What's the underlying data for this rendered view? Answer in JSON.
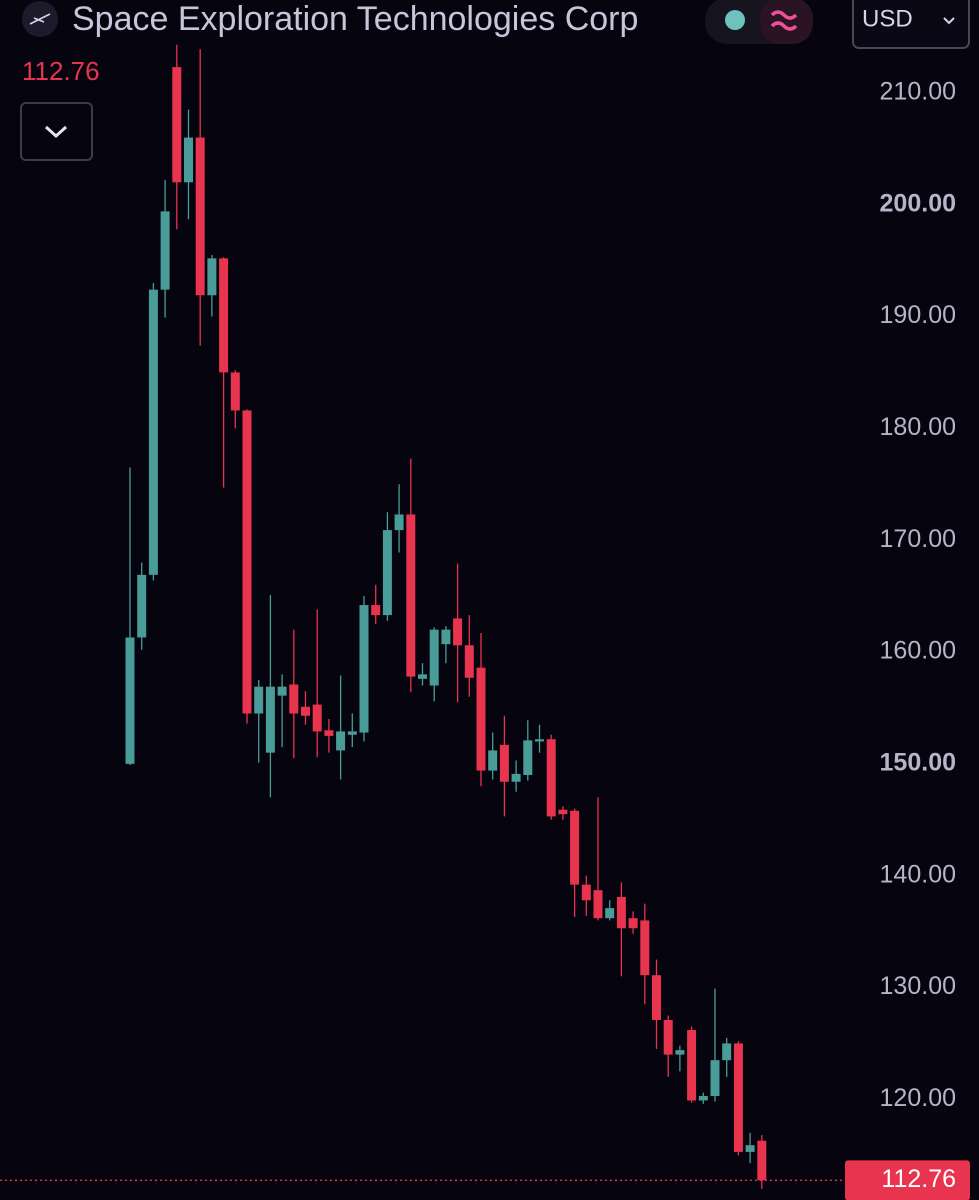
{
  "chart_data": {
    "type": "candlestick",
    "title": "Space Exploration Technologies Corp",
    "currency": "USD",
    "last_price": 112.76,
    "up_color": "#4a9c98",
    "down_color": "#e8344e",
    "ylim": [
      111.0,
      218.3
    ],
    "yticks": [
      {
        "value": 120,
        "label": "120.00"
      },
      {
        "value": 130,
        "label": "130.00"
      },
      {
        "value": 140,
        "label": "140.00"
      },
      {
        "value": 150,
        "label": "150.00",
        "bold": true
      },
      {
        "value": 160,
        "label": "160.00"
      },
      {
        "value": 170,
        "label": "170.00"
      },
      {
        "value": 180,
        "label": "180.00"
      },
      {
        "value": 190,
        "label": "190.00"
      },
      {
        "value": 200,
        "label": "200.00",
        "bold": true
      },
      {
        "value": 210,
        "label": "210.00"
      }
    ],
    "open": [
      150.0,
      161.3,
      166.9,
      192.4,
      212.3,
      202.0,
      206.0,
      191.9,
      195.2,
      185.0,
      181.6,
      154.5,
      151.0,
      156.1,
      157.1,
      155.1,
      155.3,
      153.0,
      151.2,
      152.6,
      152.8,
      164.2,
      163.3,
      170.9,
      172.3,
      157.6,
      157.0,
      160.7,
      163.0,
      160.6,
      158.6,
      149.4,
      151.7,
      148.4,
      149.0,
      152.0,
      152.2,
      145.9,
      145.8,
      139.2,
      138.7,
      136.2,
      138.1,
      136.2,
      136.0,
      131.1,
      127.1,
      124.0,
      126.2,
      119.9,
      120.3,
      123.5,
      125.0,
      115.3,
      116.3
    ],
    "high": [
      176.5,
      168.0,
      193.0,
      202.2,
      214.3,
      208.5,
      213.9,
      195.5,
      195.3,
      185.2,
      181.7,
      157.5,
      165.1,
      158.0,
      162.0,
      156.5,
      163.8,
      154.0,
      157.9,
      154.5,
      165.0,
      166.0,
      172.5,
      175.0,
      177.3,
      159.0,
      162.2,
      162.3,
      167.9,
      163.3,
      161.7,
      152.8,
      154.3,
      150.3,
      153.9,
      153.5,
      152.6,
      146.2,
      146.0,
      140.0,
      147.0,
      137.8,
      139.4,
      136.8,
      137.5,
      132.5,
      127.5,
      124.8,
      126.5,
      120.6,
      129.9,
      125.5,
      125.2,
      117.0,
      116.8
    ],
    "low": [
      149.9,
      160.2,
      166.4,
      189.9,
      197.8,
      198.7,
      187.4,
      190.0,
      174.7,
      180.0,
      153.6,
      150.1,
      147.0,
      151.5,
      150.5,
      153.5,
      150.6,
      151.0,
      148.6,
      151.5,
      152.0,
      162.5,
      162.8,
      168.9,
      156.4,
      157.0,
      155.6,
      159.0,
      155.5,
      156.0,
      148.0,
      148.6,
      145.3,
      147.5,
      148.5,
      151.0,
      145.0,
      145.0,
      136.3,
      136.4,
      136.0,
      136.0,
      131.0,
      134.8,
      128.5,
      124.5,
      122.0,
      122.5,
      119.7,
      119.6,
      119.8,
      122.0,
      115.0,
      114.3,
      112.0
    ],
    "close": [
      161.3,
      166.9,
      192.4,
      199.4,
      202.0,
      206.0,
      191.9,
      195.2,
      185.0,
      181.6,
      154.5,
      156.9,
      156.9,
      156.9,
      154.5,
      154.3,
      152.9,
      152.5,
      152.9,
      152.9,
      164.2,
      163.3,
      170.9,
      172.3,
      157.8,
      158.0,
      162.0,
      162.0,
      160.6,
      157.7,
      149.4,
      151.2,
      148.4,
      149.1,
      152.1,
      152.2,
      145.3,
      145.5,
      139.2,
      137.8,
      136.2,
      137.1,
      135.3,
      135.3,
      131.1,
      127.1,
      124.0,
      124.4,
      119.9,
      120.3,
      123.5,
      125.0,
      115.3,
      115.9,
      112.76
    ]
  }
}
